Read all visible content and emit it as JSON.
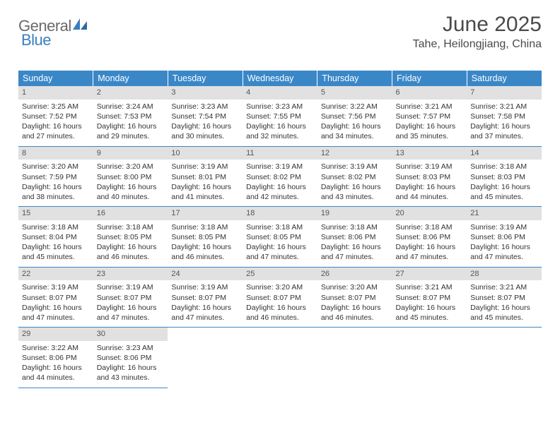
{
  "logo": {
    "part1": "General",
    "part2": "Blue"
  },
  "title": "June 2025",
  "subtitle": "Tahe, Heilongjiang, China",
  "colors": {
    "header_bg": "#3a87c8",
    "header_text": "#ffffff",
    "daynum_bg": "#e1e1e1",
    "rule": "#3a87c8",
    "logo_gray": "#6a6a6a",
    "logo_blue": "#3a7fbf",
    "text": "#333333",
    "background": "#ffffff"
  },
  "typography": {
    "title_fontsize": 30,
    "subtitle_fontsize": 16,
    "weekday_fontsize": 12.5,
    "cell_fontsize": 10.5,
    "logo_fontsize": 22
  },
  "calendar": {
    "type": "table",
    "weekdays": [
      "Sunday",
      "Monday",
      "Tuesday",
      "Wednesday",
      "Thursday",
      "Friday",
      "Saturday"
    ],
    "labels": {
      "sunrise": "Sunrise",
      "sunset": "Sunset",
      "daylight": "Daylight"
    },
    "days": [
      {
        "n": 1,
        "sunrise": "3:25 AM",
        "sunset": "7:52 PM",
        "daylight": "16 hours and 27 minutes."
      },
      {
        "n": 2,
        "sunrise": "3:24 AM",
        "sunset": "7:53 PM",
        "daylight": "16 hours and 29 minutes."
      },
      {
        "n": 3,
        "sunrise": "3:23 AM",
        "sunset": "7:54 PM",
        "daylight": "16 hours and 30 minutes."
      },
      {
        "n": 4,
        "sunrise": "3:23 AM",
        "sunset": "7:55 PM",
        "daylight": "16 hours and 32 minutes."
      },
      {
        "n": 5,
        "sunrise": "3:22 AM",
        "sunset": "7:56 PM",
        "daylight": "16 hours and 34 minutes."
      },
      {
        "n": 6,
        "sunrise": "3:21 AM",
        "sunset": "7:57 PM",
        "daylight": "16 hours and 35 minutes."
      },
      {
        "n": 7,
        "sunrise": "3:21 AM",
        "sunset": "7:58 PM",
        "daylight": "16 hours and 37 minutes."
      },
      {
        "n": 8,
        "sunrise": "3:20 AM",
        "sunset": "7:59 PM",
        "daylight": "16 hours and 38 minutes."
      },
      {
        "n": 9,
        "sunrise": "3:20 AM",
        "sunset": "8:00 PM",
        "daylight": "16 hours and 40 minutes."
      },
      {
        "n": 10,
        "sunrise": "3:19 AM",
        "sunset": "8:01 PM",
        "daylight": "16 hours and 41 minutes."
      },
      {
        "n": 11,
        "sunrise": "3:19 AM",
        "sunset": "8:02 PM",
        "daylight": "16 hours and 42 minutes."
      },
      {
        "n": 12,
        "sunrise": "3:19 AM",
        "sunset": "8:02 PM",
        "daylight": "16 hours and 43 minutes."
      },
      {
        "n": 13,
        "sunrise": "3:19 AM",
        "sunset": "8:03 PM",
        "daylight": "16 hours and 44 minutes."
      },
      {
        "n": 14,
        "sunrise": "3:18 AM",
        "sunset": "8:03 PM",
        "daylight": "16 hours and 45 minutes."
      },
      {
        "n": 15,
        "sunrise": "3:18 AM",
        "sunset": "8:04 PM",
        "daylight": "16 hours and 45 minutes."
      },
      {
        "n": 16,
        "sunrise": "3:18 AM",
        "sunset": "8:05 PM",
        "daylight": "16 hours and 46 minutes."
      },
      {
        "n": 17,
        "sunrise": "3:18 AM",
        "sunset": "8:05 PM",
        "daylight": "16 hours and 46 minutes."
      },
      {
        "n": 18,
        "sunrise": "3:18 AM",
        "sunset": "8:05 PM",
        "daylight": "16 hours and 47 minutes."
      },
      {
        "n": 19,
        "sunrise": "3:18 AM",
        "sunset": "8:06 PM",
        "daylight": "16 hours and 47 minutes."
      },
      {
        "n": 20,
        "sunrise": "3:18 AM",
        "sunset": "8:06 PM",
        "daylight": "16 hours and 47 minutes."
      },
      {
        "n": 21,
        "sunrise": "3:19 AM",
        "sunset": "8:06 PM",
        "daylight": "16 hours and 47 minutes."
      },
      {
        "n": 22,
        "sunrise": "3:19 AM",
        "sunset": "8:07 PM",
        "daylight": "16 hours and 47 minutes."
      },
      {
        "n": 23,
        "sunrise": "3:19 AM",
        "sunset": "8:07 PM",
        "daylight": "16 hours and 47 minutes."
      },
      {
        "n": 24,
        "sunrise": "3:19 AM",
        "sunset": "8:07 PM",
        "daylight": "16 hours and 47 minutes."
      },
      {
        "n": 25,
        "sunrise": "3:20 AM",
        "sunset": "8:07 PM",
        "daylight": "16 hours and 46 minutes."
      },
      {
        "n": 26,
        "sunrise": "3:20 AM",
        "sunset": "8:07 PM",
        "daylight": "16 hours and 46 minutes."
      },
      {
        "n": 27,
        "sunrise": "3:21 AM",
        "sunset": "8:07 PM",
        "daylight": "16 hours and 45 minutes."
      },
      {
        "n": 28,
        "sunrise": "3:21 AM",
        "sunset": "8:07 PM",
        "daylight": "16 hours and 45 minutes."
      },
      {
        "n": 29,
        "sunrise": "3:22 AM",
        "sunset": "8:06 PM",
        "daylight": "16 hours and 44 minutes."
      },
      {
        "n": 30,
        "sunrise": "3:23 AM",
        "sunset": "8:06 PM",
        "daylight": "16 hours and 43 minutes."
      }
    ],
    "first_weekday_index": 0,
    "rows": 5,
    "cols": 7
  }
}
